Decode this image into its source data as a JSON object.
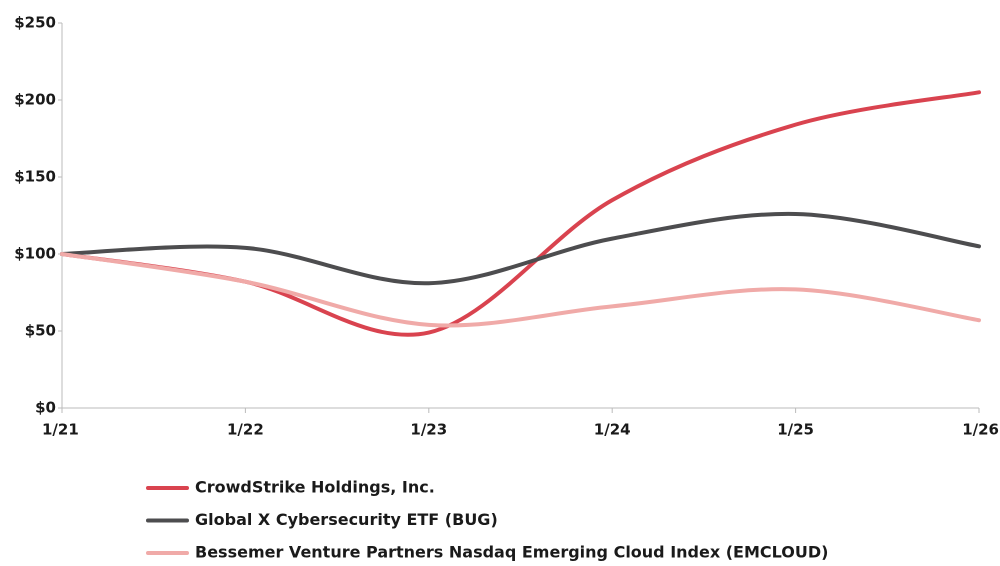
{
  "chart_data": {
    "type": "line",
    "categories": [
      "1/21",
      "1/22",
      "1/23",
      "1/24",
      "1/25",
      "1/26"
    ],
    "series": [
      {
        "name": "CrowdStrike Holdings, Inc.",
        "color": "#d9434f",
        "values": [
          100,
          82,
          49,
          135,
          184,
          205
        ]
      },
      {
        "name": "Global X Cybersecurity ETF (BUG)",
        "color": "#4d4d4f",
        "values": [
          100,
          104,
          81,
          110,
          126,
          105
        ]
      },
      {
        "name": "Bessemer Venture Partners Nasdaq Emerging Cloud Index (EMCLOUD)",
        "color": "#f0aaa8",
        "values": [
          100,
          82,
          54,
          66,
          77,
          57
        ]
      }
    ],
    "ylim": [
      0,
      250
    ],
    "yticks": [
      {
        "value": 0,
        "label": "$0"
      },
      {
        "value": 50,
        "label": "$50"
      },
      {
        "value": 100,
        "label": "$100"
      },
      {
        "value": 150,
        "label": "$150"
      },
      {
        "value": 200,
        "label": "$200"
      },
      {
        "value": 250,
        "label": "$250"
      }
    ],
    "grid": false
  }
}
